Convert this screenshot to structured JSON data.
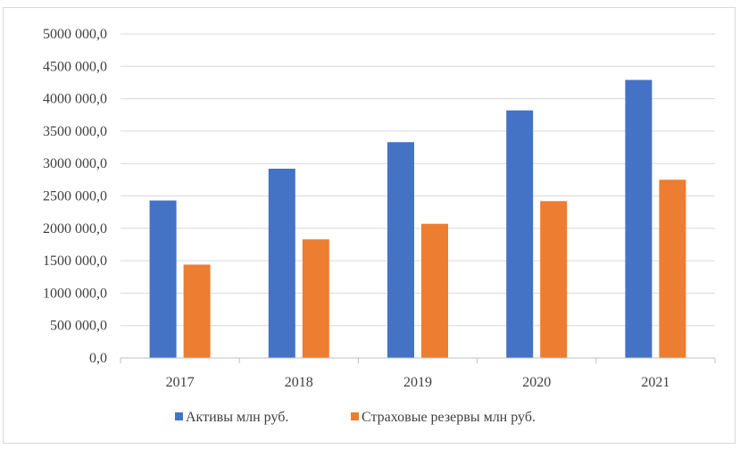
{
  "chart_data": {
    "type": "bar",
    "title": "",
    "xlabel": "",
    "ylabel": "",
    "categories": [
      "2017",
      "2018",
      "2019",
      "2020",
      "2021"
    ],
    "ylim": [
      0,
      5000000
    ],
    "yticks": [
      0,
      500000,
      1000000,
      1500000,
      2000000,
      2500000,
      3000000,
      3500000,
      4000000,
      4500000,
      5000000
    ],
    "ytick_labels": [
      "0,0",
      "500 000,0",
      "1000 000,0",
      "1500 000,0",
      "2000 000,0",
      "2500 000,0",
      "3000 000,0",
      "3500 000,0",
      "4000 000,0",
      "4500 000,0",
      "5000 000,0"
    ],
    "grid": true,
    "legend_position": "bottom",
    "series": [
      {
        "name": "Активы млн руб.",
        "color": "#4472c4",
        "values": [
          2430000,
          2920000,
          3330000,
          3820000,
          4290000
        ]
      },
      {
        "name": "Страховые резервы млн руб.",
        "color": "#ed7d31",
        "values": [
          1440000,
          1830000,
          2070000,
          2420000,
          2750000
        ]
      }
    ]
  }
}
